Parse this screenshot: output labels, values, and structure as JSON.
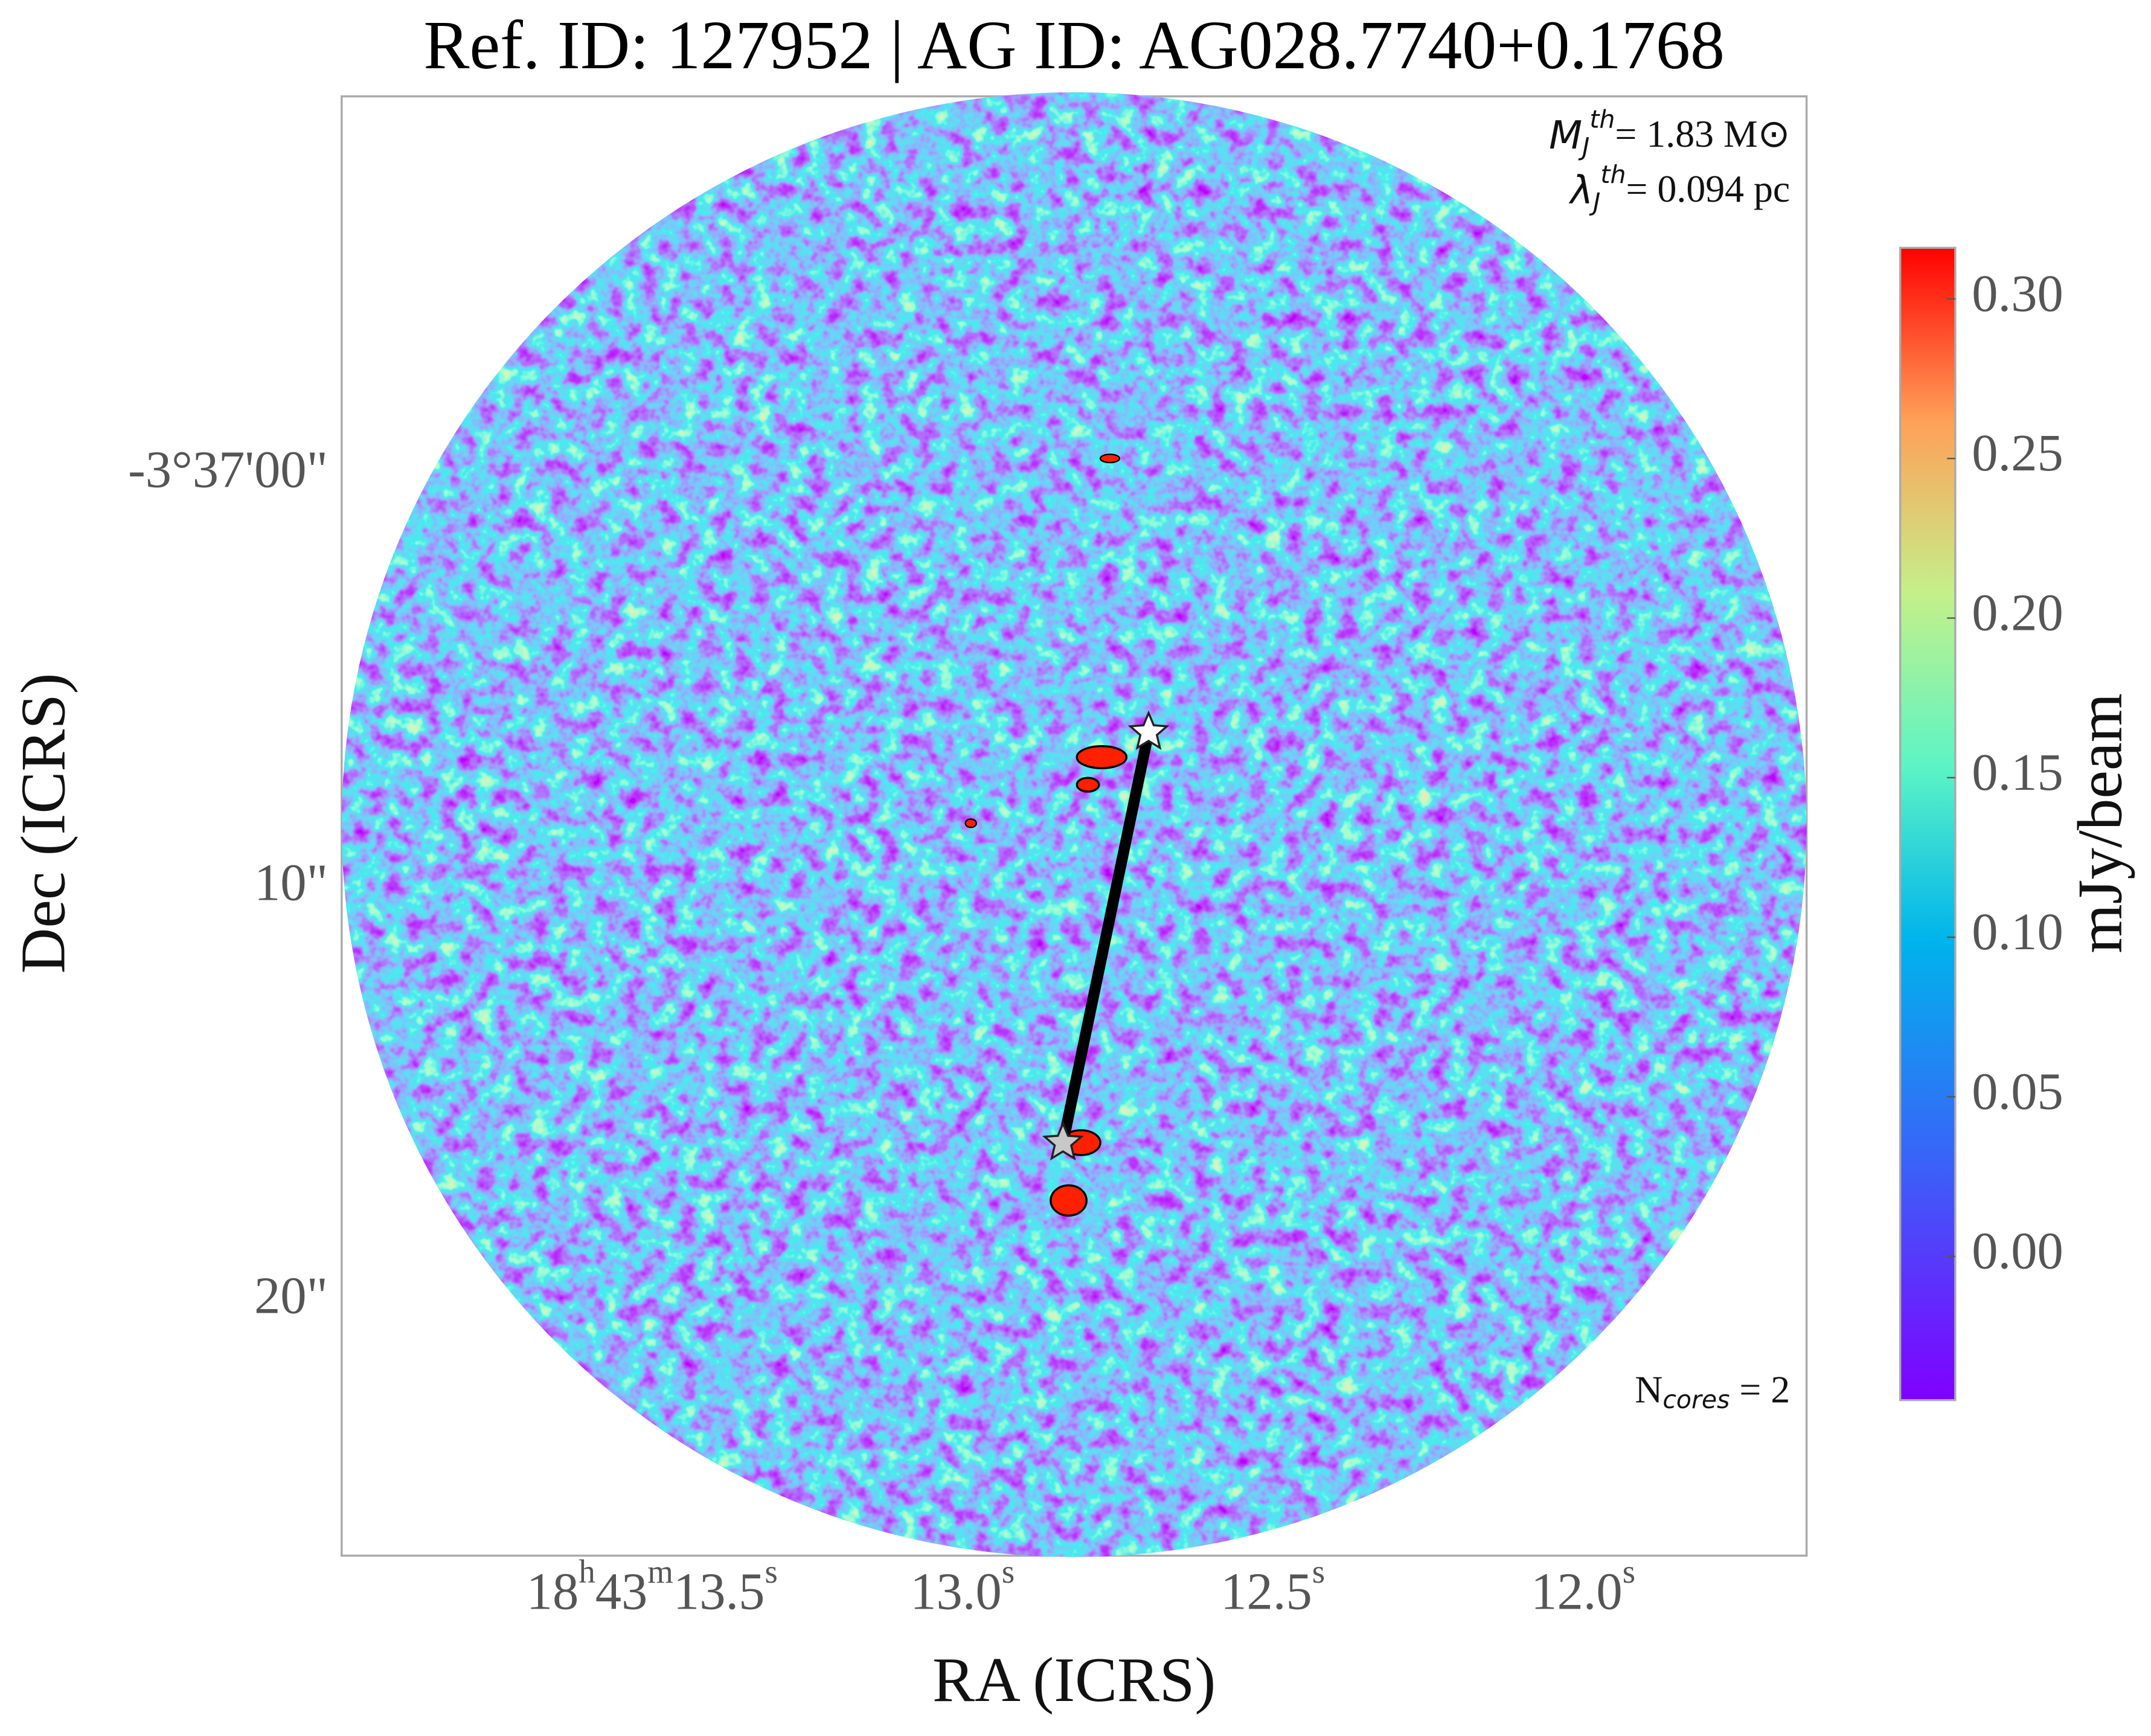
{
  "chart_data": {
    "type": "image",
    "title": "Ref. ID: 127952 | AG ID: AG028.7740+0.1768",
    "xlabel": "RA (ICRS)",
    "ylabel": "Dec (ICRS)",
    "xlim": [
      14.0,
      11.64
    ],
    "xticks": [
      {
        "value": 13.5,
        "label": "18h43m13.5s"
      },
      {
        "value": 13.0,
        "label": "13.0s"
      },
      {
        "value": 12.5,
        "label": "12.5s"
      },
      {
        "value": 12.0,
        "label": "12.0s"
      }
    ],
    "ylim": [
      -9.17,
      26.17
    ],
    "yticks": [
      {
        "value": 0,
        "label": "-3°37'00\""
      },
      {
        "value": 10,
        "label": "10\""
      },
      {
        "value": 20,
        "label": "20\""
      }
    ],
    "colorbar_label": "mJy/beam",
    "cmap": "rainbow",
    "clim": [
      -0.045,
      0.316
    ],
    "cticks": [
      {
        "value": 0,
        "label": "0.00"
      },
      {
        "value": 0.05,
        "label": "0.05"
      },
      {
        "value": 0.1,
        "label": "0.10"
      },
      {
        "value": 0.15,
        "label": "0.15"
      },
      {
        "value": 0.2,
        "label": "0.20"
      },
      {
        "value": 0.25,
        "label": "0.25"
      },
      {
        "value": 0.3,
        "label": "0.30"
      }
    ],
    "cores": {
      "x": [
        12.7,
        12.838
      ],
      "values": [
        6.23,
        16.17
      ],
      "colors": [
        "#ffffff",
        "#c8c8c8"
      ]
    },
    "annotations": {
      "mass": {
        "symbol": "M",
        "sub": "J",
        "sup": "th",
        "text": "= 1.83 M⊙"
      },
      "length": {
        "symbol": "λ",
        "sub": "J",
        "sup": "th",
        "text": "= 0.094 pc"
      },
      "ncores": {
        "symbol": "N",
        "sub": "cores",
        "text": " = 2"
      }
    }
  }
}
